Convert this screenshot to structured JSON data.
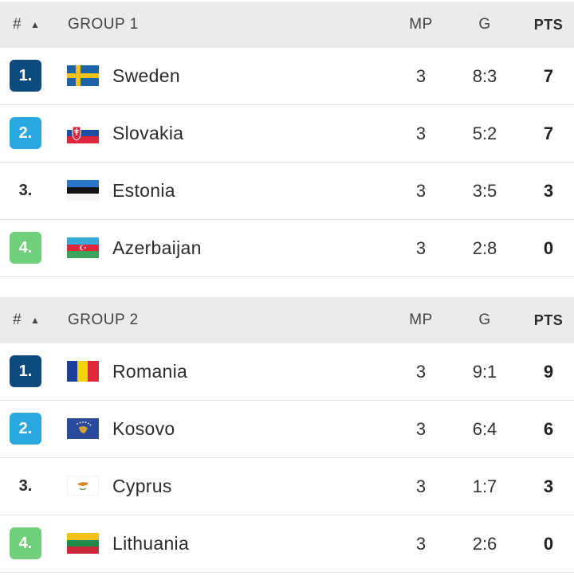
{
  "colors": {
    "rank_1": "#0d4a7d",
    "rank_2": "#2aa8e0",
    "rank_4": "#6fcf7b"
  },
  "groups": [
    {
      "header": {
        "hash": "#",
        "sort_icon": "triangle-up-icon",
        "title": "GROUP 1",
        "mp": "MP",
        "g": "G",
        "pts": "PTS"
      },
      "rows": [
        {
          "rank": "1.",
          "flag": "sweden-flag",
          "team": "Sweden",
          "mp": "3",
          "g": "8:3",
          "pts": "7"
        },
        {
          "rank": "2.",
          "flag": "slovakia-flag",
          "team": "Slovakia",
          "mp": "3",
          "g": "5:2",
          "pts": "7"
        },
        {
          "rank": "3.",
          "flag": "estonia-flag",
          "team": "Estonia",
          "mp": "3",
          "g": "3:5",
          "pts": "3"
        },
        {
          "rank": "4.",
          "flag": "azerbaijan-flag",
          "team": "Azerbaijan",
          "mp": "3",
          "g": "2:8",
          "pts": "0"
        }
      ]
    },
    {
      "header": {
        "hash": "#",
        "sort_icon": "triangle-up-icon",
        "title": "GROUP 2",
        "mp": "MP",
        "g": "G",
        "pts": "PTS"
      },
      "rows": [
        {
          "rank": "1.",
          "flag": "romania-flag",
          "team": "Romania",
          "mp": "3",
          "g": "9:1",
          "pts": "9"
        },
        {
          "rank": "2.",
          "flag": "kosovo-flag",
          "team": "Kosovo",
          "mp": "3",
          "g": "6:4",
          "pts": "6"
        },
        {
          "rank": "3.",
          "flag": "cyprus-flag",
          "team": "Cyprus",
          "mp": "3",
          "g": "1:7",
          "pts": "3"
        },
        {
          "rank": "4.",
          "flag": "lithuania-flag",
          "team": "Lithuania",
          "mp": "3",
          "g": "2:6",
          "pts": "0"
        }
      ]
    }
  ]
}
